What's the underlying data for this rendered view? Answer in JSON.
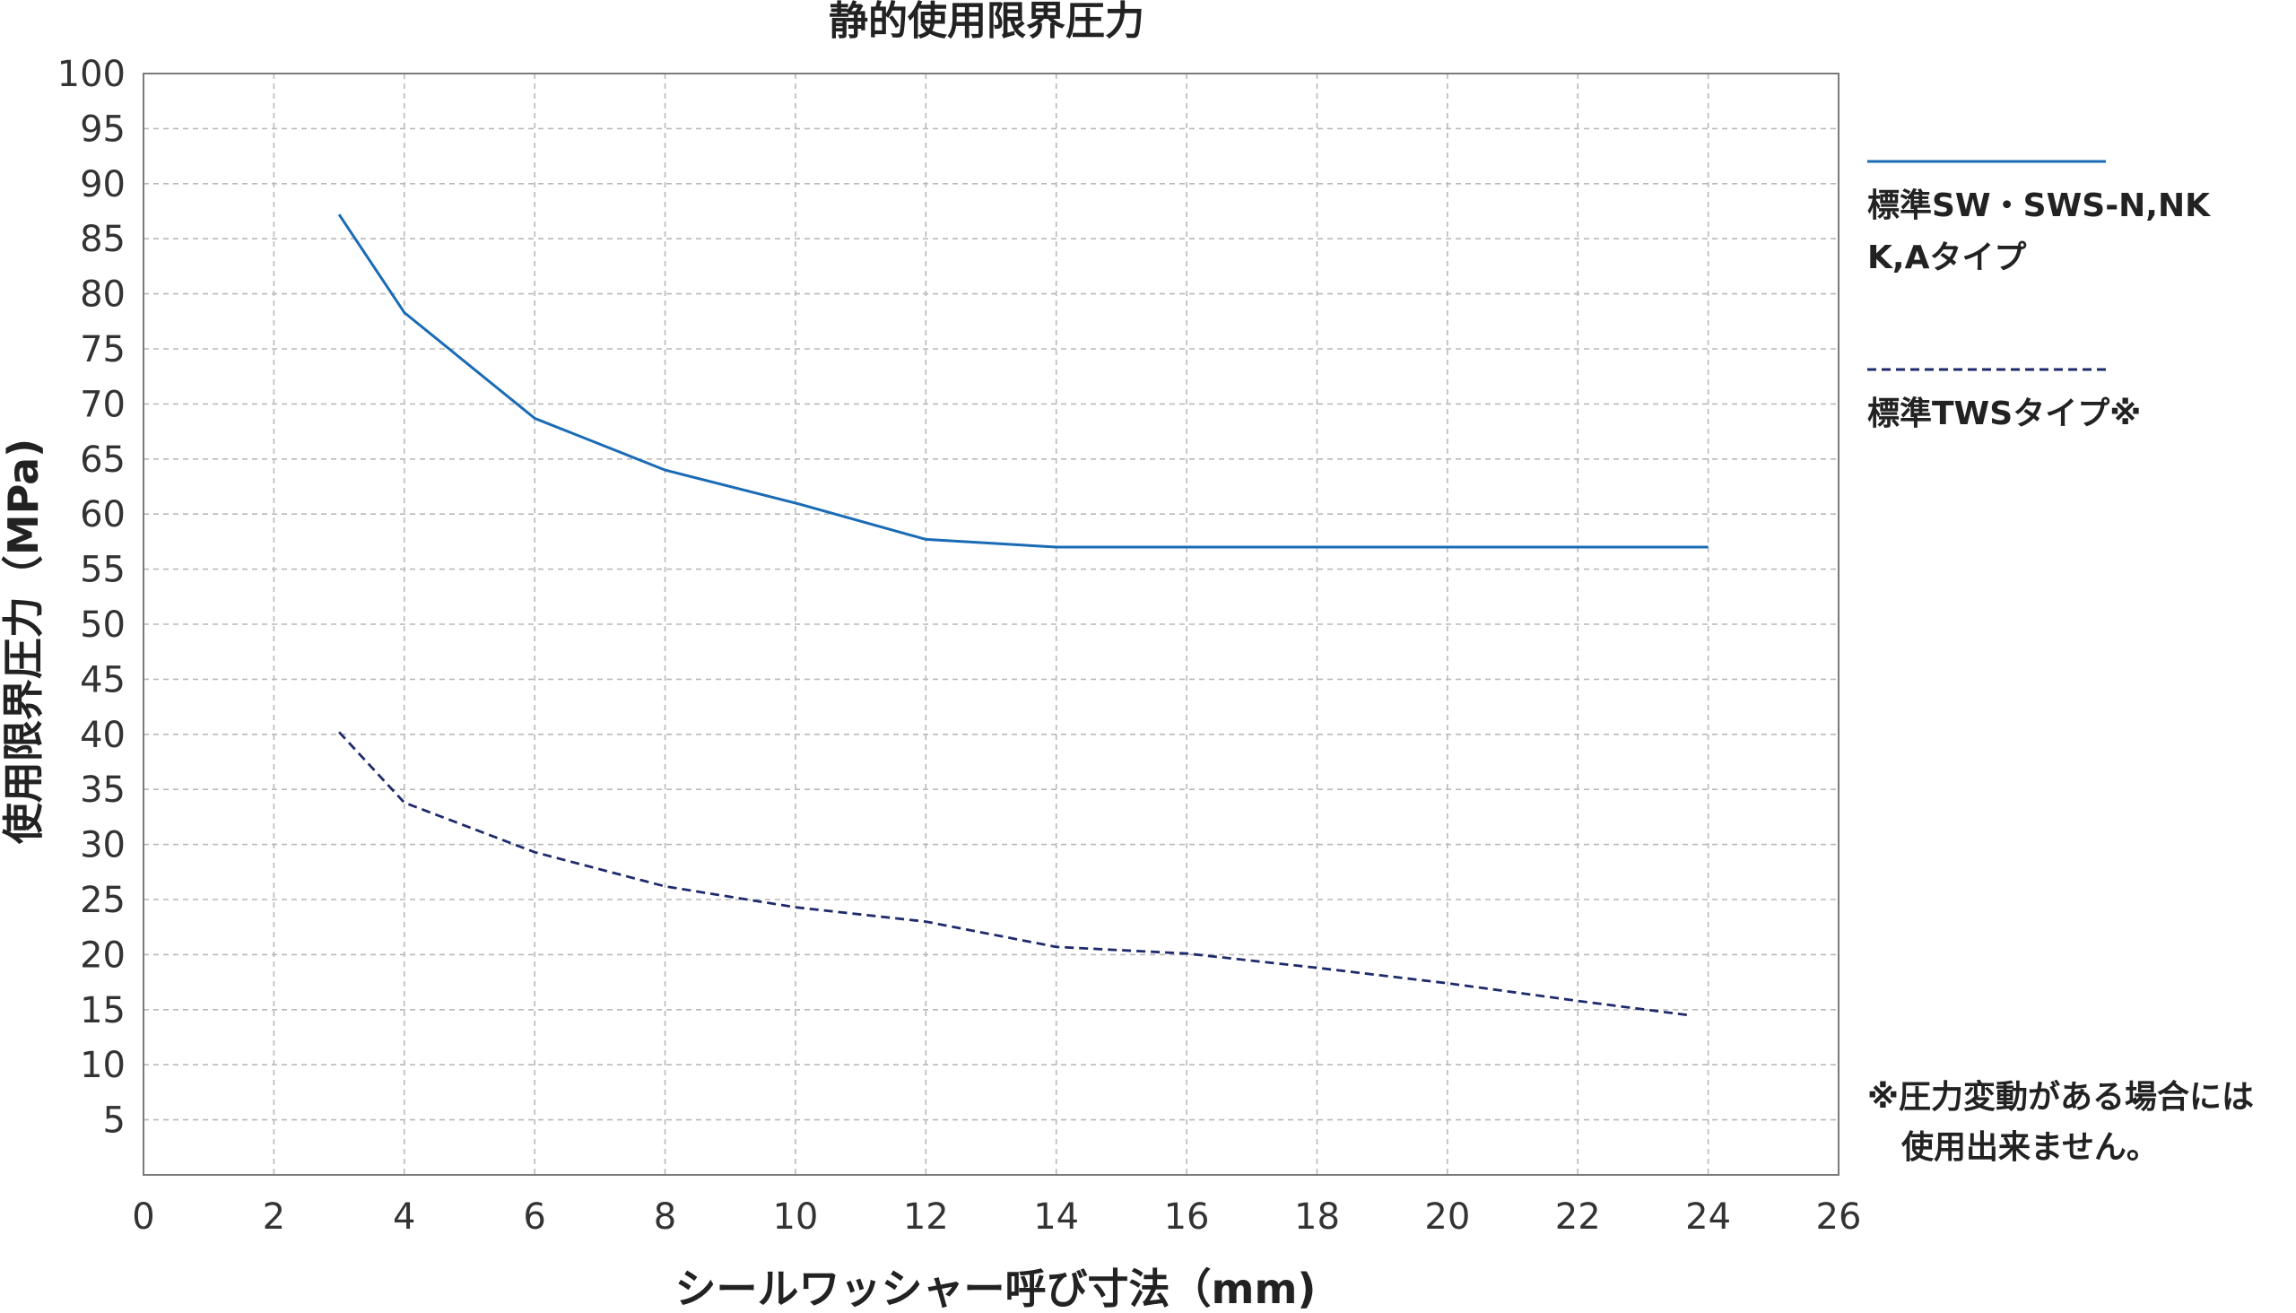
{
  "chart_data": {
    "type": "line",
    "title": "静的使用限界圧力",
    "xlabel": "シールワッシャー呼び寸法（mm)",
    "ylabel": "使用限界圧力（MPa)",
    "xlim": [
      0,
      26
    ],
    "ylim": [
      0,
      100
    ],
    "x_ticks": [
      "0",
      "2",
      "4",
      "6",
      "8",
      "10",
      "12",
      "14",
      "16",
      "18",
      "20",
      "22",
      "24",
      "26"
    ],
    "y_ticks": [
      "5",
      "10",
      "15",
      "20",
      "25",
      "30",
      "35",
      "40",
      "45",
      "50",
      "55",
      "60",
      "65",
      "70",
      "75",
      "80",
      "85",
      "90",
      "95",
      "100"
    ],
    "grid": true,
    "legend_position": "right",
    "series": [
      {
        "name_lines": [
          "標準SW・SWS-N,NK",
          "K,Aタイプ"
        ],
        "color": "#1a6bb5",
        "style": "solid",
        "x": [
          3,
          4,
          6,
          8,
          10,
          12,
          14,
          16,
          18,
          20,
          22,
          24
        ],
        "y": [
          87.2,
          78.3,
          68.7,
          64.0,
          61.0,
          57.7,
          57.0,
          57.0,
          57.0,
          57.0,
          57.0,
          57.0
        ]
      },
      {
        "name_lines": [
          "標準TWSタイプ※"
        ],
        "color": "#1f2a6b",
        "style": "dashed",
        "x": [
          3,
          4,
          6,
          8,
          10,
          12,
          14,
          16,
          18,
          20,
          22,
          23.7
        ],
        "y": [
          40.2,
          33.8,
          29.3,
          26.2,
          24.3,
          23.0,
          20.7,
          20.1,
          18.8,
          17.4,
          15.8,
          14.5
        ]
      }
    ],
    "note_lines": [
      "※圧力変動がある場合には",
      "使用出来ません。"
    ]
  }
}
